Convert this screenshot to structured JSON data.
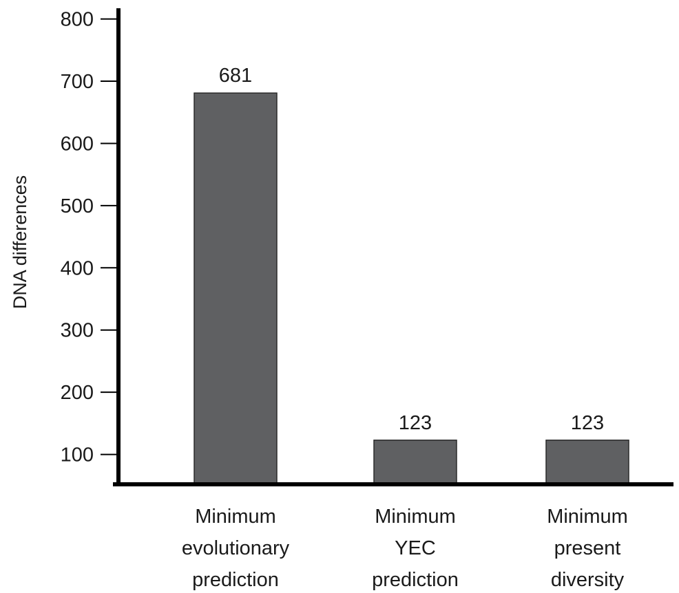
{
  "chart_data": {
    "type": "bar",
    "title": "",
    "xlabel": "",
    "ylabel": "DNA differences",
    "ylim": [
      52,
      800
    ],
    "yticks": [
      100,
      200,
      300,
      400,
      500,
      600,
      700,
      800
    ],
    "grid": false,
    "legend": "none",
    "categories": [
      [
        "Minimum",
        "evolutionary",
        "prediction"
      ],
      [
        "Minimum",
        "YEC",
        "prediction"
      ],
      [
        "Minimum",
        "present",
        "diversity"
      ]
    ],
    "values": [
      681,
      123,
      123
    ],
    "data_labels": [
      "681",
      "123",
      "123"
    ],
    "colors": {
      "bar": "#5f6062",
      "bar_edge": "#2a2a2a",
      "axis": "#000000"
    }
  }
}
